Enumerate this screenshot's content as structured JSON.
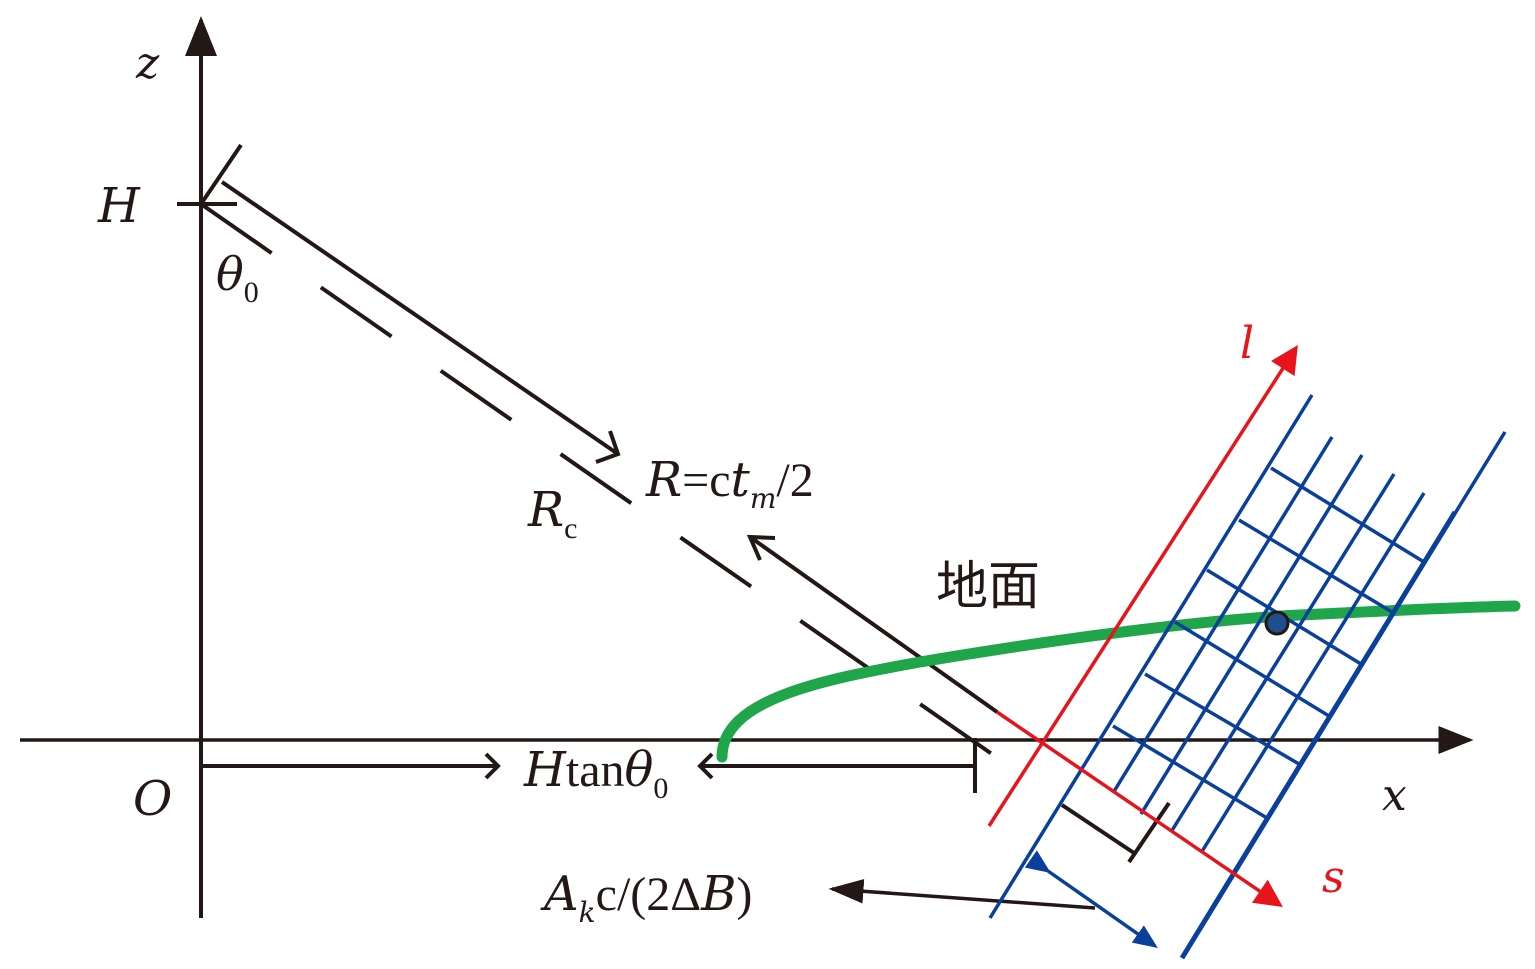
{
  "colors": {
    "black": "#231815",
    "red": "#e8141c",
    "blue": "#0a3f9c",
    "green": "#1fa64a",
    "point": "#1f4e8c"
  },
  "labels": {
    "z_axis": "z",
    "x_axis": "x",
    "origin": "O",
    "height": "H",
    "theta": "θ",
    "theta_sub": "0",
    "rc_main": "R",
    "rc_sub": "c",
    "range_R": "R",
    "range_eq": "=c",
    "range_t": "t",
    "range_t_sub": "m",
    "range_tail": "/2",
    "ground": "地面",
    "htan_H": "H",
    "htan_tan": "tan",
    "htan_theta": "θ",
    "htan_sub": "0",
    "l_axis": "l",
    "s_axis": "s",
    "ak_A": "A",
    "ak_sub": "k",
    "ak_c": "c/(2Δ",
    "ak_B": "B",
    "ak_close": ")"
  }
}
